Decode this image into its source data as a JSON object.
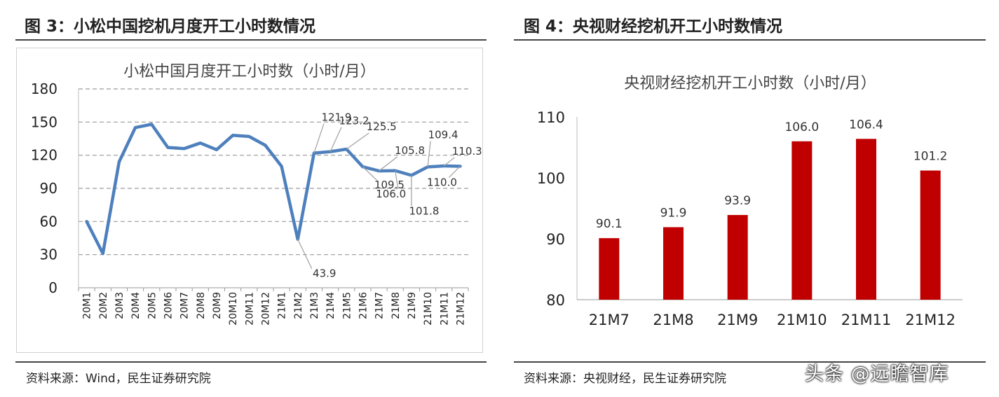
{
  "fig3": {
    "heading": "图 3：小松中国挖机月度开工小时数情况",
    "source": "资料来源：Wind，民生证券研究院"
  },
  "fig4": {
    "heading": "图 4：央视财经挖机开工小时数情况",
    "source": "资料来源：央视财经，民生证券研究院"
  },
  "watermark": "头条 @远瞻智库",
  "chart_data": [
    {
      "type": "line",
      "title": "小松中国月度开工小时数（小时/月）",
      "xlabel": "",
      "ylabel": "",
      "ylim": [
        0,
        180
      ],
      "yticks": [
        0,
        30,
        60,
        90,
        120,
        150,
        180
      ],
      "grid": true,
      "legend": "none",
      "color": "#4e80bd",
      "categories": [
        "20M1",
        "20M2",
        "20M3",
        "20M4",
        "20M5",
        "20M6",
        "20M7",
        "20M8",
        "20M9",
        "20M10",
        "20M11",
        "20M12",
        "21M1",
        "21M2",
        "21M3",
        "21M4",
        "21M5",
        "21M6",
        "21M7",
        "21M8",
        "21M9",
        "21M10",
        "21M11",
        "21M12"
      ],
      "values": [
        60,
        31,
        114,
        145,
        148,
        127,
        126,
        131,
        125,
        138,
        137,
        129,
        110,
        43.9,
        121.9,
        123.2,
        125.5,
        109.5,
        105.8,
        106.0,
        101.8,
        109.4,
        110.3,
        110.0
      ],
      "data_labels": [
        {
          "index": 13,
          "text": "43.9"
        },
        {
          "index": 14,
          "text": "121.9"
        },
        {
          "index": 15,
          "text": "123.2"
        },
        {
          "index": 16,
          "text": "125.5"
        },
        {
          "index": 17,
          "text": "109.5"
        },
        {
          "index": 18,
          "text": "105.8"
        },
        {
          "index": 19,
          "text": "106.0"
        },
        {
          "index": 20,
          "text": "101.8"
        },
        {
          "index": 21,
          "text": "109.4"
        },
        {
          "index": 22,
          "text": "110.3"
        },
        {
          "index": 23,
          "text": "110.0"
        }
      ]
    },
    {
      "type": "bar",
      "title": "央视财经挖机开工小时数（小时/月）",
      "xlabel": "",
      "ylabel": "",
      "ylim": [
        80,
        110
      ],
      "yticks": [
        80,
        90,
        100,
        110
      ],
      "grid": false,
      "legend": "none",
      "color": "#c00000",
      "categories": [
        "21M7",
        "21M8",
        "21M9",
        "21M10",
        "21M11",
        "21M12"
      ],
      "values": [
        90.1,
        91.9,
        93.9,
        106.0,
        106.4,
        101.2
      ],
      "data_labels": [
        "90.1",
        "91.9",
        "93.9",
        "106.0",
        "106.4",
        "101.2"
      ]
    }
  ]
}
